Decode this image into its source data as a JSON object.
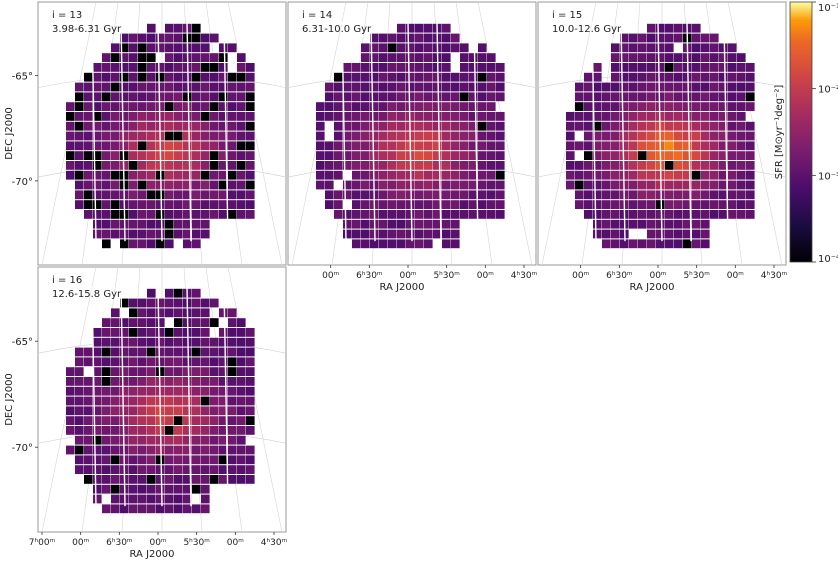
{
  "chart_data": {
    "type": "heatmap",
    "colormap": "inferno",
    "colorbar": {
      "label": "SFR [M⊙yr⁻¹deg⁻²]",
      "scale": "log",
      "range": [
        0.0001,
        0.1
      ],
      "ticks": [
        "10⁻¹",
        "10⁻²",
        "10⁻³",
        "10⁻⁴"
      ]
    },
    "axes": {
      "xlabel": "RA J2000",
      "ylabel": "DEC J2000",
      "ra_ticks": [
        "7ʰ00ᵐ",
        "00ᵐ",
        "6ʰ30ᵐ",
        "00ᵐ",
        "5ʰ30ᵐ",
        "00ᵐ",
        "4ʰ30ᵐ"
      ],
      "dec_ticks": [
        "-65°",
        "-70°"
      ],
      "grid": true
    },
    "panels": [
      {
        "index_label": "i = 13",
        "age_range": "3.98-6.31 Gyr",
        "peak_sfr": 0.012,
        "empty_fraction": 0.16,
        "show_ylabel": true,
        "show_xlabel": false
      },
      {
        "index_label": "i = 14",
        "age_range": "6.31-10.0 Gyr",
        "peak_sfr": 0.015,
        "empty_fraction": 0.02,
        "show_ylabel": false,
        "show_xlabel": true
      },
      {
        "index_label": "i = 15",
        "age_range": "10.0-12.6 Gyr",
        "peak_sfr": 0.04,
        "empty_fraction": 0.03,
        "show_ylabel": false,
        "show_xlabel": true
      },
      {
        "index_label": "i = 16",
        "age_range": "12.6-15.8 Gyr",
        "peak_sfr": 0.012,
        "empty_fraction": 0.05,
        "show_ylabel": true,
        "show_xlabel": true
      }
    ]
  }
}
